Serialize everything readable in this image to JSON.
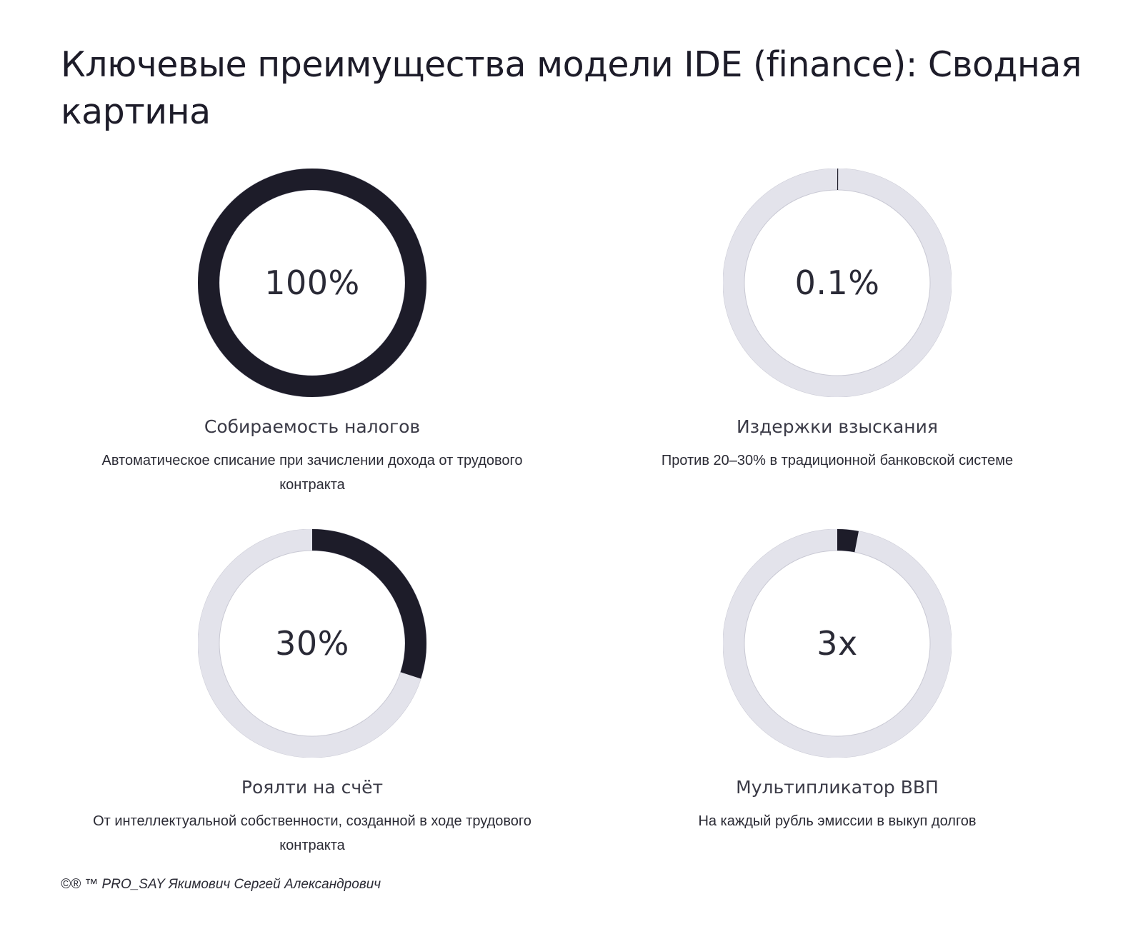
{
  "title": "Ключевые преимущества модели IDE (finance): Сводная картина",
  "colors": {
    "track": "#e3e3eb",
    "track_edge": "#c9c9d4",
    "fill": "#1d1c29",
    "text": "#2a2a36"
  },
  "chart_data": [
    {
      "type": "pie",
      "variant": "donut",
      "value_label": "100%",
      "fraction": 1.0,
      "label": "Собираемость налогов",
      "description": "Автоматическое списание при зачислении дохода от трудового контракта"
    },
    {
      "type": "pie",
      "variant": "donut",
      "value_label": "0.1%",
      "fraction": 0.001,
      "label": "Издержки взыскания",
      "description": "Против 20–30% в традиционной банковской системе"
    },
    {
      "type": "pie",
      "variant": "donut",
      "value_label": "30%",
      "fraction": 0.3,
      "label": "Роялти на счёт",
      "description": "От интеллектуальной собственности, созданной в ходе трудового контракта"
    },
    {
      "type": "pie",
      "variant": "donut",
      "value_label": "3x",
      "fraction": 0.03,
      "label": "Мультипликатор ВВП",
      "description": "На каждый рубль эмиссии в выкуп долгов"
    }
  ],
  "footer": "©® ™ PRO_SAY Якимович Сергей Александрович"
}
